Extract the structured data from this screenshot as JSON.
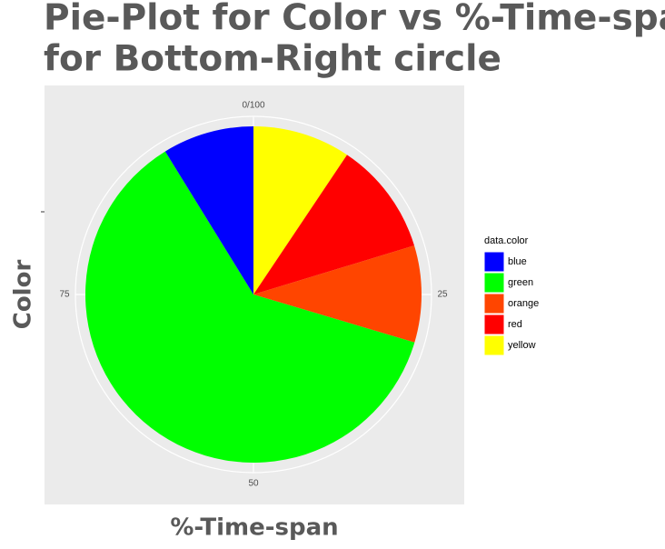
{
  "chart_data": {
    "type": "pie",
    "title": [
      "Pie-Plot for Color vs %-Time-span",
      "for Bottom-Right circle"
    ],
    "x_label": "%-Time-span",
    "y_label": "Color",
    "legend_title": "data.color",
    "categories": [
      "blue",
      "green",
      "orange",
      "red",
      "yellow"
    ],
    "colors": [
      "#0000ff",
      "#00ff00",
      "#ff4500",
      "#ff0000",
      "#ffff00"
    ],
    "values": [
      8.8,
      61.6,
      9.3,
      10.9,
      9.4
    ],
    "xlim": [
      0,
      100
    ],
    "xticks": [
      {
        "value": 0,
        "label": "0/100"
      },
      25,
      50,
      75
    ],
    "grid": true,
    "legend": "right"
  }
}
